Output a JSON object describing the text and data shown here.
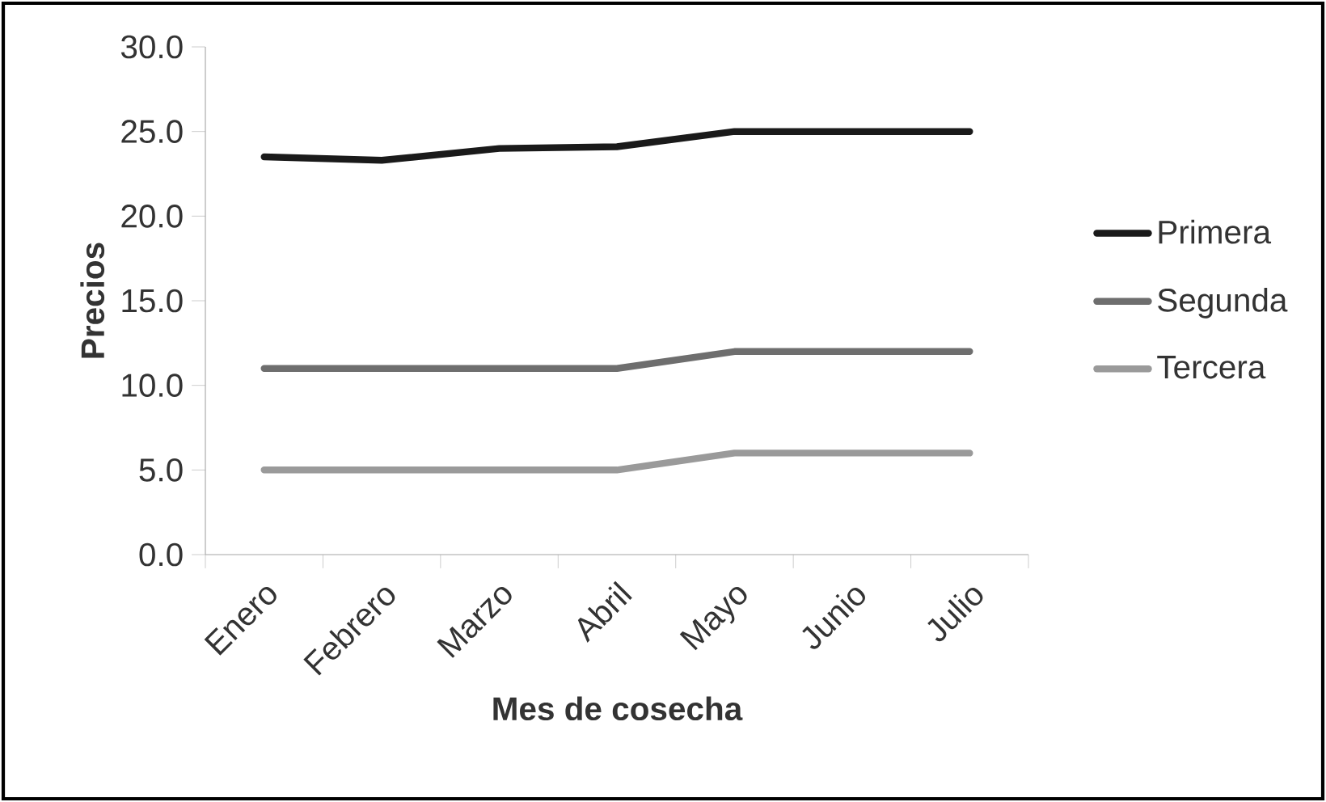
{
  "chart_data": {
    "type": "line",
    "xlabel": "Mes de cosecha",
    "ylabel": "Precios",
    "categories": [
      "Enero",
      "Febrero",
      "Marzo",
      "Abril",
      "Mayo",
      "Junio",
      "Julio"
    ],
    "series": [
      {
        "name": "Primera",
        "color": "#1a1a1a",
        "values": [
          23.5,
          23.3,
          24.0,
          24.1,
          25.0,
          25.0,
          25.0
        ]
      },
      {
        "name": "Segunda",
        "color": "#6e6e6e",
        "values": [
          11.0,
          11.0,
          11.0,
          11.0,
          12.0,
          12.0,
          12.0
        ]
      },
      {
        "name": "Tercera",
        "color": "#9a9a9a",
        "values": [
          5.0,
          5.0,
          5.0,
          5.0,
          6.0,
          6.0,
          6.0
        ]
      }
    ],
    "ylim": [
      0,
      30
    ],
    "yticks": [
      {
        "value": 0,
        "label": "0.0"
      },
      {
        "value": 5,
        "label": "5.0"
      },
      {
        "value": 10,
        "label": "10.0"
      },
      {
        "value": 15,
        "label": "15.0"
      },
      {
        "value": 20,
        "label": "20.0"
      },
      {
        "value": 25,
        "label": "25.0"
      },
      {
        "value": 30,
        "label": "30.0"
      }
    ],
    "grid": false,
    "legend": "right",
    "line_style": "solid"
  }
}
